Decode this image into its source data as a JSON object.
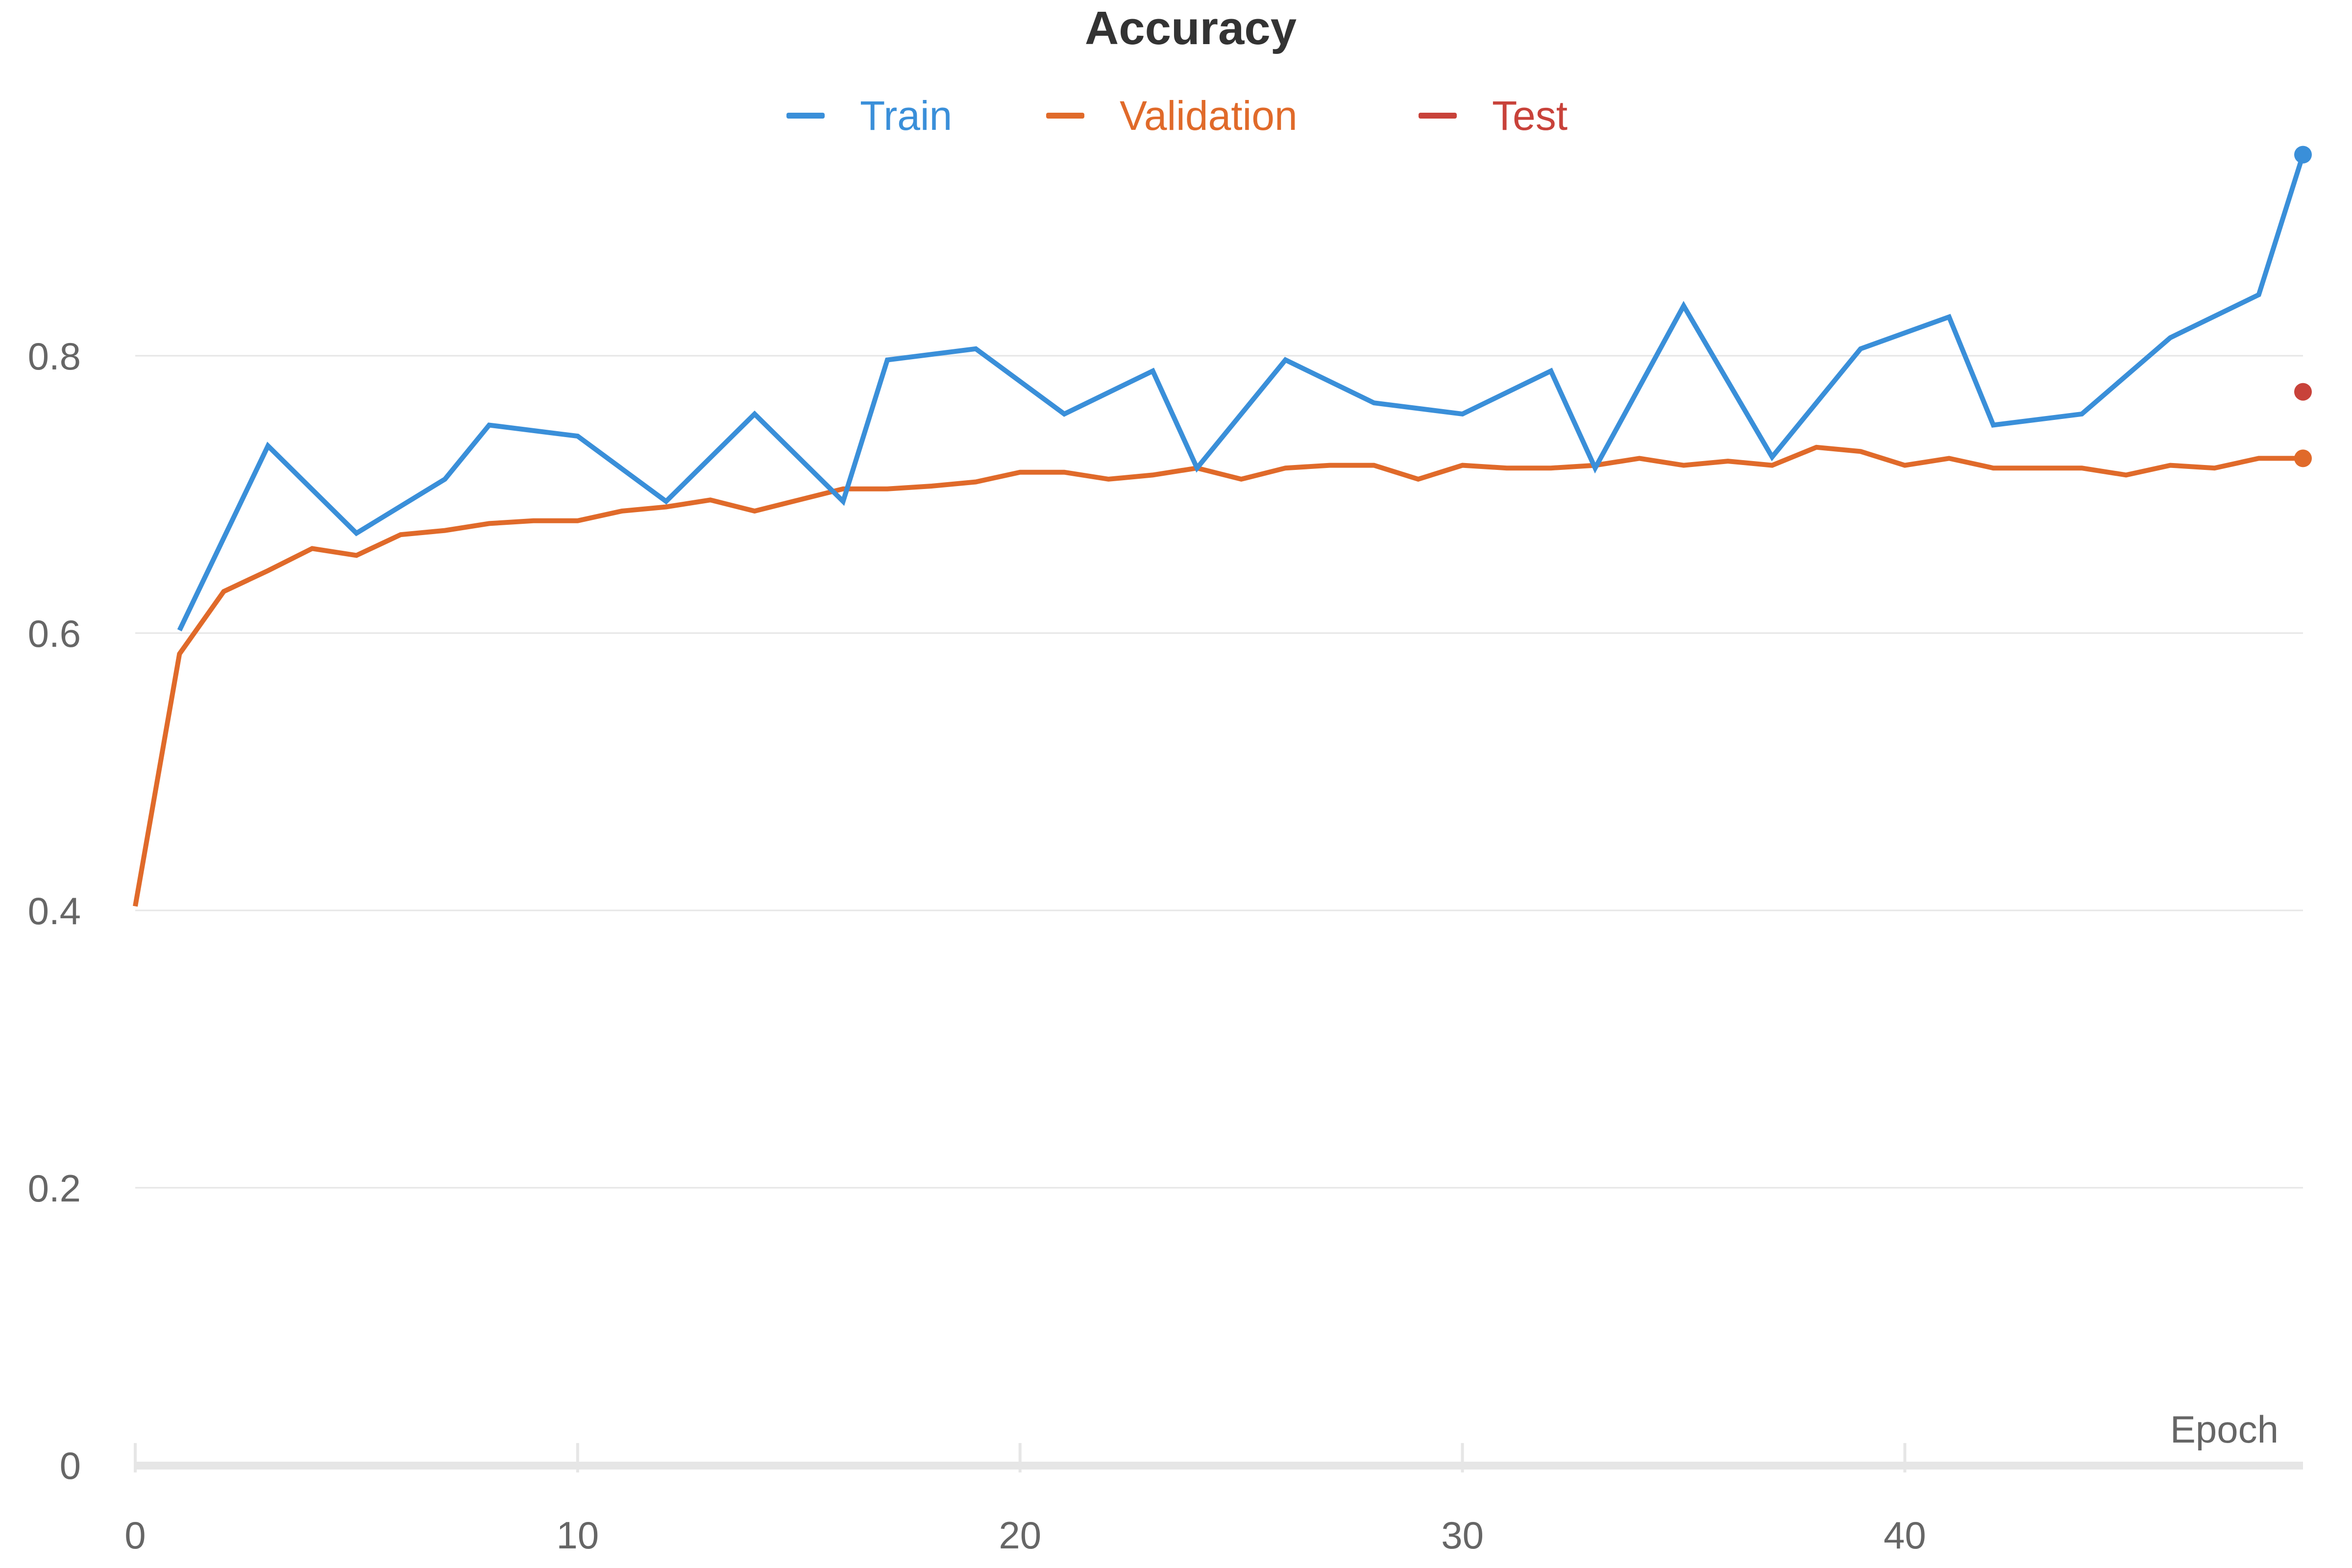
{
  "chart_data": {
    "type": "line",
    "title": "Accuracy",
    "xlabel": "Epoch",
    "ylabel": "",
    "xlim": [
      0,
      49
    ],
    "ylim": [
      0,
      1.0
    ],
    "x_ticks": [
      0,
      10,
      20,
      30,
      40
    ],
    "y_ticks": [
      0,
      0.2,
      0.4,
      0.6,
      0.8
    ],
    "x_tick_labels": [
      "0",
      "10",
      "20",
      "30",
      "40"
    ],
    "y_tick_labels": [
      "0",
      "0.2",
      "0.4",
      "0.6",
      "0.8"
    ],
    "grid": true,
    "legend_position": "top-center",
    "series": [
      {
        "name": "Train",
        "color": "#3a8fd9",
        "x": [
          1,
          3,
          5,
          7,
          8,
          10,
          12,
          14,
          16,
          17,
          19,
          21,
          23,
          24,
          26,
          28,
          30,
          32,
          33,
          35,
          37,
          39,
          41,
          42,
          44,
          46,
          48,
          49
        ],
        "values": [
          0.602,
          0.735,
          0.672,
          0.711,
          0.75,
          0.742,
          0.695,
          0.758,
          0.695,
          0.797,
          0.805,
          0.758,
          0.789,
          0.719,
          0.797,
          0.766,
          0.758,
          0.789,
          0.719,
          0.836,
          0.727,
          0.805,
          0.828,
          0.75,
          0.758,
          0.813,
          0.844,
          0.945
        ],
        "end_marker": true
      },
      {
        "name": "Validation",
        "color": "#e06a2a",
        "x": [
          0,
          1,
          2,
          3,
          4,
          5,
          6,
          7,
          8,
          9,
          10,
          11,
          12,
          13,
          14,
          15,
          16,
          17,
          18,
          19,
          20,
          21,
          22,
          23,
          24,
          25,
          26,
          27,
          28,
          29,
          30,
          31,
          32,
          33,
          34,
          35,
          36,
          37,
          38,
          39,
          40,
          41,
          42,
          43,
          44,
          45,
          46,
          47,
          48,
          49
        ],
        "values": [
          0.403,
          0.585,
          0.63,
          0.645,
          0.661,
          0.656,
          0.671,
          0.674,
          0.679,
          0.681,
          0.681,
          0.688,
          0.691,
          0.696,
          0.688,
          0.696,
          0.704,
          0.704,
          0.706,
          0.709,
          0.716,
          0.716,
          0.711,
          0.714,
          0.719,
          0.711,
          0.719,
          0.721,
          0.721,
          0.711,
          0.721,
          0.719,
          0.719,
          0.721,
          0.726,
          0.721,
          0.724,
          0.721,
          0.734,
          0.731,
          0.721,
          0.726,
          0.719,
          0.719,
          0.719,
          0.714,
          0.721,
          0.719,
          0.726,
          0.726
        ],
        "end_marker": true
      },
      {
        "name": "Test",
        "color": "#c8423a",
        "x": [
          49
        ],
        "values": [
          0.774
        ],
        "end_marker": true
      }
    ]
  }
}
